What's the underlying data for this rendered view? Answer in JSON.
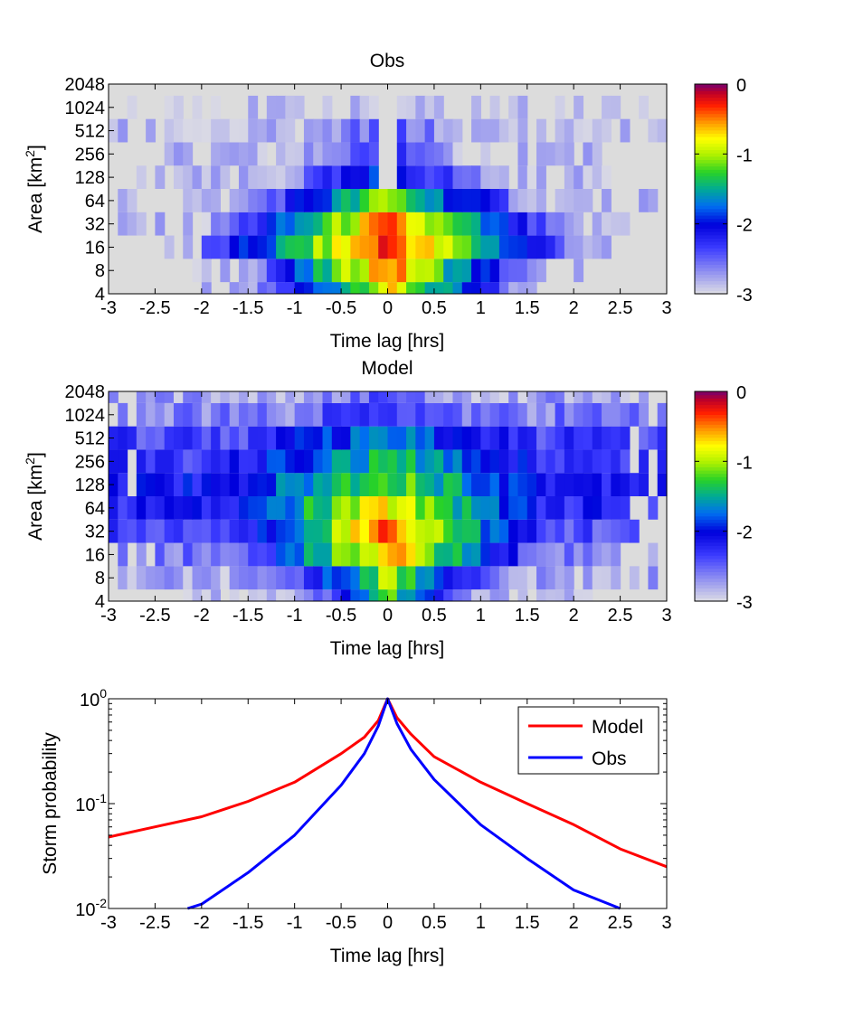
{
  "chart_data": [
    {
      "type": "heatmap",
      "title": "Obs",
      "xlabel": "Time lag [hrs]",
      "ylabel_main": "Area [km",
      "ylabel_sup": "2",
      "ylabel_end": "]",
      "xlim": [
        -3,
        3
      ],
      "xticks": [
        "-3",
        "-2.5",
        "-2",
        "-1.5",
        "-1",
        "-0.5",
        "0",
        "0.5",
        "1",
        "1.5",
        "2",
        "2.5",
        "3"
      ],
      "yticks": [
        "4",
        "8",
        "16",
        "32",
        "64",
        "128",
        "256",
        "512",
        "1024",
        "2048"
      ],
      "colorbar": {
        "ticks": [
          "0",
          "-1",
          "-2",
          "-3"
        ],
        "range": [
          -3,
          0
        ],
        "colormap": "jet-white-low",
        "scale": "log10 frequency"
      },
      "rows": [
        {
          "area": "4",
          "peak": -0.75,
          "width": 0.7,
          "floor": -2.9,
          "extent": 1.95
        },
        {
          "area": "8",
          "peak": -0.4,
          "width": 0.65,
          "floor": -2.9,
          "extent": 2.1
        },
        {
          "area": "16",
          "peak": -0.25,
          "width": 0.85,
          "floor": -2.9,
          "extent": 2.4
        },
        {
          "area": "32",
          "peak": -0.45,
          "width": 0.8,
          "floor": -2.9,
          "extent": 2.9
        },
        {
          "area": "64",
          "peak": -1.05,
          "width": 0.9,
          "floor": -2.9,
          "extent": 2.85
        },
        {
          "area": "128",
          "peak": -1.85,
          "width": 1.2,
          "floor": -2.9,
          "extent": 2.75
        },
        {
          "area": "256",
          "peak": -2.2,
          "width": 1.4,
          "floor": -2.9,
          "extent": 2.35
        },
        {
          "area": "512",
          "peak": -2.4,
          "width": 1.7,
          "floor": -2.9,
          "extent": 3.0
        },
        {
          "area": "1024",
          "peak": -2.8,
          "width": 2.0,
          "floor": -2.95,
          "extent": 2.8
        },
        {
          "area": "2048",
          "peak": null,
          "width": 0,
          "floor": null,
          "extent": 0
        }
      ]
    },
    {
      "type": "heatmap",
      "title": "Model",
      "xlabel": "Time lag [hrs]",
      "ylabel_main": "Area [km",
      "ylabel_sup": "2",
      "ylabel_end": "]",
      "xlim": [
        -3,
        3
      ],
      "xticks": [
        "-3",
        "-2.5",
        "-2",
        "-1.5",
        "-1",
        "-0.5",
        "0",
        "0.5",
        "1",
        "1.5",
        "2",
        "2.5",
        "3"
      ],
      "yticks": [
        "4",
        "8",
        "16",
        "32",
        "64",
        "128",
        "256",
        "512",
        "1024",
        "2048"
      ],
      "colorbar": {
        "ticks": [
          "0",
          "-1",
          "-2",
          "-3"
        ],
        "range": [
          -3,
          0
        ],
        "colormap": "jet-white-low",
        "scale": "log10 frequency"
      },
      "rows": [
        {
          "area": "4",
          "peak": -1.2,
          "width": 0.55,
          "floor": -2.85,
          "extent": 2.2
        },
        {
          "area": "8",
          "peak": -1.0,
          "width": 0.7,
          "floor": -2.8,
          "extent": 2.85
        },
        {
          "area": "16",
          "peak": -0.55,
          "width": 0.8,
          "floor": -2.6,
          "extent": 2.9
        },
        {
          "area": "32",
          "peak": -0.35,
          "width": 0.8,
          "floor": -2.4,
          "extent": 3.0
        },
        {
          "area": "64",
          "peak": -0.75,
          "width": 1.2,
          "floor": -2.2,
          "extent": 3.0
        },
        {
          "area": "128",
          "peak": -1.1,
          "width": 1.7,
          "floor": -2.1,
          "extent": 3.0
        },
        {
          "area": "256",
          "peak": -1.4,
          "width": 2.1,
          "floor": -2.3,
          "extent": 3.0
        },
        {
          "area": "512",
          "peak": -1.7,
          "width": 2.4,
          "floor": -2.35,
          "extent": 3.0
        },
        {
          "area": "1024",
          "peak": -2.2,
          "width": 2.6,
          "floor": -2.6,
          "extent": 3.0
        },
        {
          "area": "2048",
          "peak": -2.45,
          "width": 3.0,
          "floor": -2.75,
          "extent": 3.0
        }
      ]
    },
    {
      "type": "line",
      "xlabel": "Time lag [hrs]",
      "ylabel": "Storm probability",
      "xlim": [
        -3,
        3
      ],
      "ylim": [
        0.01,
        1
      ],
      "yscale": "log",
      "xticks": [
        "-3",
        "-2.5",
        "-2",
        "-1.5",
        "-1",
        "-0.5",
        "0",
        "0.5",
        "1",
        "1.5",
        "2",
        "2.5",
        "3"
      ],
      "yticks": [
        {
          "base": "10",
          "exp": "0"
        },
        {
          "base": "10",
          "exp": "-1"
        },
        {
          "base": "10",
          "exp": "-2"
        }
      ],
      "legend_position": "top-right",
      "series": [
        {
          "name": "Model",
          "color": "#ff0000",
          "points": [
            [
              -3,
              0.048
            ],
            [
              -2.5,
              0.06
            ],
            [
              -2,
              0.075
            ],
            [
              -1.5,
              0.105
            ],
            [
              -1,
              0.16
            ],
            [
              -0.5,
              0.3
            ],
            [
              -0.25,
              0.43
            ],
            [
              -0.1,
              0.62
            ],
            [
              0,
              1.0
            ],
            [
              0.1,
              0.66
            ],
            [
              0.25,
              0.46
            ],
            [
              0.5,
              0.28
            ],
            [
              1,
              0.16
            ],
            [
              1.5,
              0.1
            ],
            [
              2,
              0.063
            ],
            [
              2.5,
              0.037
            ],
            [
              3,
              0.025
            ]
          ]
        },
        {
          "name": "Obs",
          "color": "#0000ff",
          "points": [
            [
              -2.15,
              0.01
            ],
            [
              -2,
              0.011
            ],
            [
              -1.5,
              0.022
            ],
            [
              -1,
              0.05
            ],
            [
              -0.5,
              0.15
            ],
            [
              -0.25,
              0.3
            ],
            [
              -0.1,
              0.55
            ],
            [
              0,
              1.0
            ],
            [
              0.1,
              0.58
            ],
            [
              0.25,
              0.33
            ],
            [
              0.5,
              0.17
            ],
            [
              1,
              0.063
            ],
            [
              1.5,
              0.03
            ],
            [
              2,
              0.015
            ],
            [
              2.5,
              0.01
            ]
          ]
        }
      ]
    }
  ]
}
